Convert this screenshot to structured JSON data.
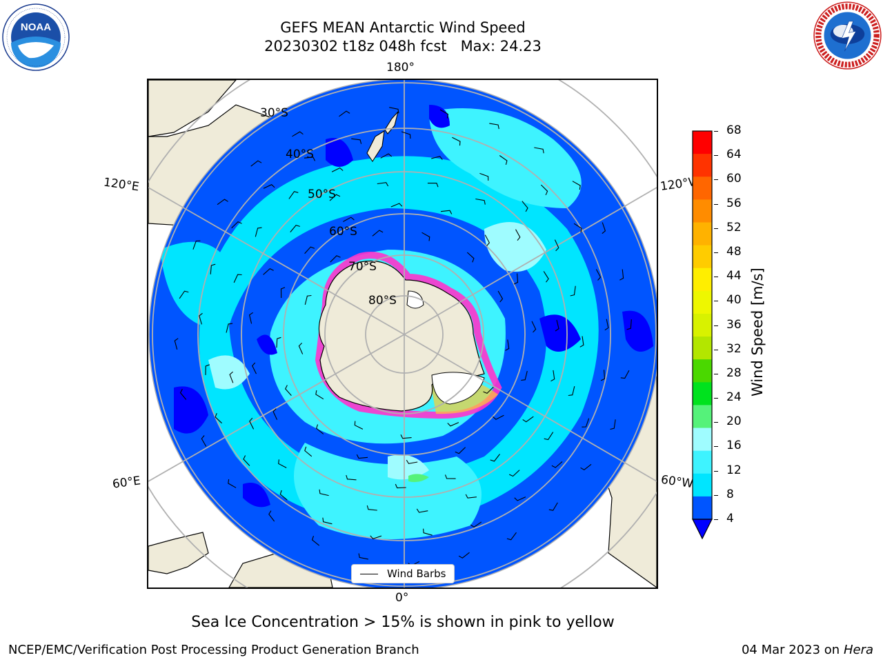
{
  "header": {
    "title_line1": "GEFS MEAN Antarctic Wind Speed",
    "title_line2": "20230302 t18z 048h fcst   Max: 24.23"
  },
  "logos": {
    "left": {
      "name": "noaa-logo",
      "text": "NOAA",
      "ring_text": "NATIONAL OCEANIC AND ATMOSPHERIC ADMINISTRATION · U.S. DEPARTMENT OF COMMERCE"
    },
    "right": {
      "name": "nws-logo",
      "ring_text": "NATIONAL WEATHER SERVICE"
    }
  },
  "map": {
    "projection": "South Polar Stereographic",
    "longitude_labels": {
      "top": "180°",
      "bottom": "0°",
      "upper_left": "120°E",
      "upper_right": "120°W",
      "lower_left": "60°E",
      "lower_right": "60°W"
    },
    "latitude_labels": [
      "30°S",
      "40°S",
      "50°S",
      "60°S",
      "70°S",
      "80°S"
    ],
    "legend_label": "Wind Barbs"
  },
  "colorbar": {
    "label": "Wind Speed [m/s]",
    "ticks": [
      "4",
      "8",
      "12",
      "16",
      "20",
      "24",
      "28",
      "32",
      "36",
      "40",
      "44",
      "48",
      "52",
      "56",
      "60",
      "64",
      "68"
    ],
    "colors": [
      "#0055ff",
      "#00e5ff",
      "#3ef3ff",
      "#9ffcff",
      "#55f27a",
      "#00e21e",
      "#4ad800",
      "#b3e600",
      "#d8f200",
      "#eef700",
      "#ffee00",
      "#ffcc00",
      "#ffb200",
      "#ff8c00",
      "#ff6600",
      "#ff3300",
      "#ff0000"
    ],
    "underflow_color": "#0000ff"
  },
  "caption": "Sea Ice Concentration > 15% is shown in pink to yellow",
  "footer": {
    "left": "NCEP/EMC/Verification Post Processing Product Generation Branch",
    "right_date": "04 Mar 2023 on",
    "right_machine": "Hera"
  }
}
